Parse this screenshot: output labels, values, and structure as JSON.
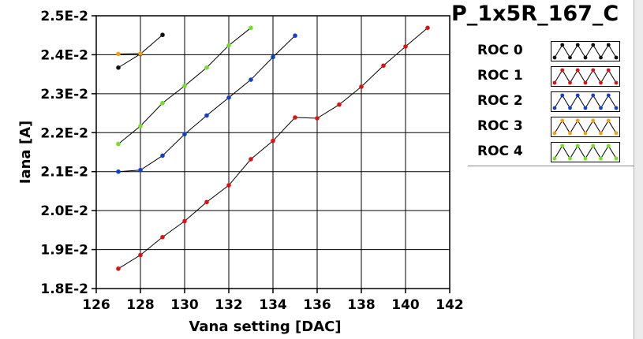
{
  "panel_title": "P_1x5R_167_C",
  "legend_items": [
    {
      "label": "ROC 0",
      "color": "#111111"
    },
    {
      "label": "ROC 1",
      "color": "#e01010"
    },
    {
      "label": "ROC 2",
      "color": "#1040d0"
    },
    {
      "label": "ROC 3",
      "color": "#f0a010"
    },
    {
      "label": "ROC 4",
      "color": "#70e020"
    }
  ],
  "chart_data": {
    "type": "line",
    "title": "",
    "xlabel": "Vana setting [DAC]",
    "ylabel": "Iana [A]",
    "xlim": [
      126,
      142
    ],
    "ylim": [
      0.018,
      0.025
    ],
    "x_ticks": [
      "126",
      "128",
      "130",
      "132",
      "134",
      "136",
      "138",
      "140",
      "142"
    ],
    "y_ticks": [
      "1.8E-2",
      "1.9E-2",
      "2.0E-2",
      "2.1E-2",
      "2.2E-2",
      "2.3E-2",
      "2.4E-2",
      "2.5E-2"
    ],
    "grid": true,
    "legend_position": "right",
    "series": [
      {
        "name": "ROC 0",
        "color": "#111111",
        "x": [
          127,
          128,
          129
        ],
        "y": [
          0.02367,
          0.02402,
          0.02451
        ]
      },
      {
        "name": "ROC 1",
        "color": "#e01010",
        "x": [
          127,
          128,
          129,
          130,
          131,
          132,
          133,
          134,
          135,
          136,
          137,
          138,
          139,
          140,
          141
        ],
        "y": [
          0.01851,
          0.01886,
          0.01932,
          0.01973,
          0.02022,
          0.02065,
          0.02132,
          0.02179,
          0.02239,
          0.02237,
          0.02272,
          0.02318,
          0.02372,
          0.02421,
          0.02469
        ]
      },
      {
        "name": "ROC 2",
        "color": "#1040d0",
        "x": [
          127,
          128,
          129,
          130,
          131,
          132,
          133,
          134,
          135
        ],
        "y": [
          0.021,
          0.02104,
          0.02141,
          0.02196,
          0.02244,
          0.0229,
          0.02336,
          0.02394,
          0.02449
        ]
      },
      {
        "name": "ROC 3",
        "color": "#f0a010",
        "x": [
          127,
          128
        ],
        "y": [
          0.02402,
          0.02403
        ]
      },
      {
        "name": "ROC 4",
        "color": "#70e020",
        "x": [
          127,
          128,
          129,
          130,
          131,
          132,
          133
        ],
        "y": [
          0.02171,
          0.02217,
          0.02276,
          0.0232,
          0.02367,
          0.02424,
          0.02469
        ]
      }
    ]
  }
}
